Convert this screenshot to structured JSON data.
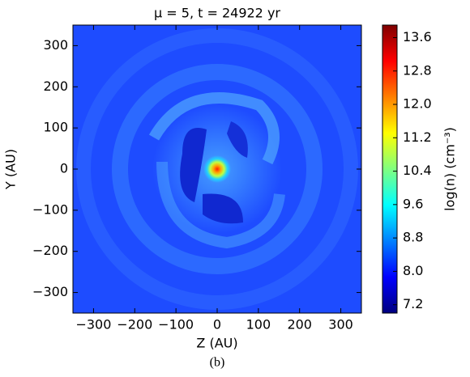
{
  "chart_data": {
    "type": "heatmap",
    "title": "μ = 5, t = 24922 yr",
    "caption": "(b)",
    "xlabel": "Z (AU)",
    "ylabel": "Y (AU)",
    "colorbar_label": "log(n) (cm⁻³)",
    "colormap": "jet",
    "xlim": [
      -350,
      350
    ],
    "ylim": [
      -350,
      350
    ],
    "xticks": [
      {
        "value": -300,
        "label": "−300"
      },
      {
        "value": -200,
        "label": "−200"
      },
      {
        "value": -100,
        "label": "−100"
      },
      0,
      100,
      200,
      300
    ],
    "yticks": [
      {
        "value": -300,
        "label": "−300"
      },
      {
        "value": -200,
        "label": "−200"
      },
      {
        "value": -100,
        "label": "−100"
      },
      0,
      100,
      200,
      300
    ],
    "clim": [
      7.0,
      13.9
    ],
    "cticks": [
      7.2,
      {
        "value": 8,
        "label": "8.0"
      },
      8.8,
      9.6,
      10.4,
      11.2,
      {
        "value": 12,
        "label": "12.0"
      },
      12.8,
      13.6
    ]
  }
}
